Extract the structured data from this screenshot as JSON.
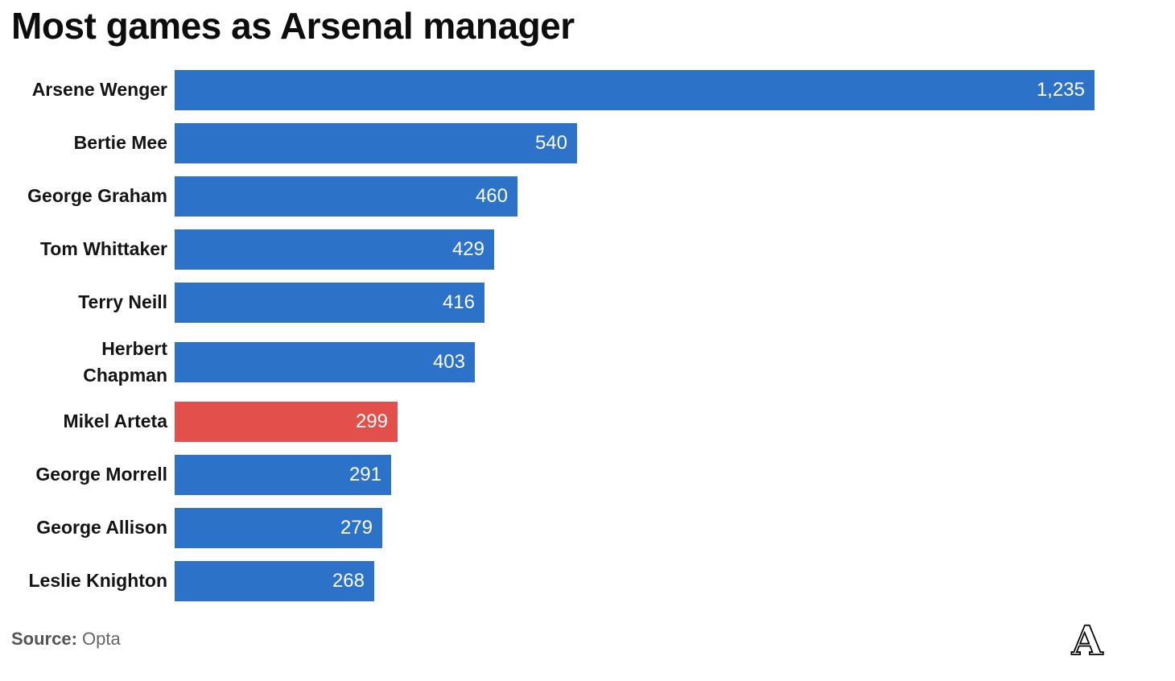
{
  "header": {
    "title": "Most games as Arsenal manager"
  },
  "chart_data": {
    "type": "bar",
    "orientation": "horizontal",
    "title": "Most games as Arsenal manager",
    "categories": [
      "Arsene Wenger",
      "Bertie Mee",
      "George Graham",
      "Tom Whittaker",
      "Terry Neill",
      "Herbert Chapman",
      "Mikel Arteta",
      "George Morrell",
      "George Allison",
      "Leslie Knighton"
    ],
    "display_labels": [
      "Arsene Wenger",
      "Bertie Mee",
      "George Graham",
      "Tom Whittaker",
      "Terry Neill",
      "Herbert\nChapman",
      "Mikel Arteta",
      "George Morrell",
      "George Allison",
      "Leslie Knighton"
    ],
    "values": [
      1235,
      540,
      460,
      429,
      416,
      403,
      299,
      291,
      279,
      268
    ],
    "value_labels": [
      "1,235",
      "540",
      "460",
      "429",
      "416",
      "403",
      "299",
      "291",
      "279",
      "268"
    ],
    "highlight_category": "Mikel Arteta",
    "highlight_index": 6,
    "xlim": [
      0,
      1235
    ],
    "xlabel": "",
    "ylabel": "",
    "grid": false,
    "legend": false,
    "bar_color": "#2C72C8",
    "highlight_color": "#E3504C",
    "value_text_color": "#FFFFFF"
  },
  "footer": {
    "source_label": "Source:",
    "source_value": "Opta"
  },
  "logo": {
    "letter": "A"
  },
  "colors": {
    "background": "#FFFFFF",
    "title_text": "#0D0D0D",
    "category_text": "#141414",
    "source_text": "#666666"
  }
}
